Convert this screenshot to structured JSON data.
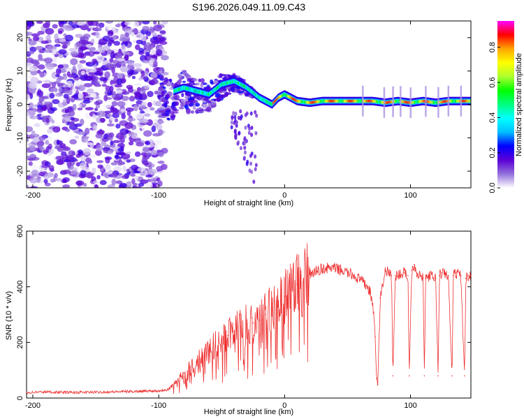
{
  "title": "S196.2026.049.11.09.C43",
  "chart_data": [
    {
      "type": "heatmap",
      "title": "S196.2026.049.11.09.C43",
      "xlabel": "Height of straight line (km)",
      "ylabel": "Frequency (Hz)",
      "xlim": [
        -205,
        148
      ],
      "ylim": [
        -25,
        25
      ],
      "x_ticks": [
        -200,
        -100,
        0,
        100
      ],
      "y_ticks": [
        -20,
        -10,
        0,
        10,
        20
      ],
      "colorbar": {
        "label": "Normalized spectral amplitude",
        "range": [
          0,
          0.95
        ],
        "ticks": [
          0.0,
          0.2,
          0.4,
          0.6,
          0.8
        ],
        "colors": [
          "#ffffff",
          "#9370db",
          "#5b00d6",
          "#0000ff",
          "#00bfff",
          "#00ffff",
          "#00ff7f",
          "#00ff00",
          "#adff2f",
          "#ffff00",
          "#ffa500",
          "#ff0000",
          "#ff00ff"
        ]
      },
      "dominant_frequency_track": {
        "x": [
          -88,
          -80,
          -70,
          -60,
          -50,
          -40,
          -30,
          -20,
          -10,
          -5,
          0,
          5,
          10,
          20,
          30,
          40,
          50,
          60,
          70,
          80,
          90,
          100,
          110,
          120,
          130,
          140,
          148
        ],
        "frequency": [
          4,
          5,
          4,
          3,
          6,
          7,
          5,
          2,
          0,
          2,
          3,
          2,
          1,
          0.5,
          1,
          1,
          1,
          1,
          1,
          0.5,
          1,
          0.5,
          1,
          0.5,
          1,
          1,
          1
        ]
      }
    },
    {
      "type": "line",
      "xlabel": "Height of straight line (km)",
      "ylabel": "SNR (10 * v/v)",
      "xlim": [
        -205,
        148
      ],
      "ylim": [
        0,
        600
      ],
      "x_ticks": [
        -200,
        -100,
        0,
        100
      ],
      "y_ticks": [
        0,
        200,
        400,
        600
      ],
      "series": [
        {
          "name": "SNR",
          "color": "#ee3030",
          "x": [
            -205,
            -190,
            -170,
            -150,
            -130,
            -110,
            -100,
            -95,
            -90,
            -85,
            -80,
            -75,
            -70,
            -65,
            -60,
            -55,
            -50,
            -45,
            -40,
            -35,
            -30,
            -25,
            -20,
            -15,
            -10,
            -5,
            0,
            5,
            10,
            15,
            20,
            25,
            30,
            35,
            40,
            45,
            50,
            55,
            60,
            65,
            68,
            70,
            72,
            73,
            74,
            76,
            80,
            85,
            86,
            88,
            95,
            98,
            99,
            101,
            103,
            105,
            108,
            110,
            111,
            112,
            115,
            120,
            122,
            123,
            125,
            130,
            133,
            134,
            136,
            140,
            143,
            144,
            146,
            148
          ],
          "y": [
            20,
            22,
            20,
            21,
            23,
            25,
            26,
            30,
            40,
            60,
            90,
            110,
            130,
            150,
            170,
            190,
            210,
            225,
            240,
            255,
            265,
            270,
            280,
            300,
            320,
            345,
            365,
            390,
            410,
            430,
            445,
            455,
            465,
            468,
            465,
            460,
            450,
            440,
            425,
            405,
            380,
            340,
            220,
            70,
            50,
            360,
            460,
            440,
            80,
            440,
            450,
            440,
            80,
            460,
            480,
            450,
            440,
            430,
            80,
            430,
            440,
            430,
            80,
            440,
            450,
            440,
            80,
            440,
            450,
            440,
            80,
            430,
            440,
            440
          ]
        }
      ]
    }
  ]
}
